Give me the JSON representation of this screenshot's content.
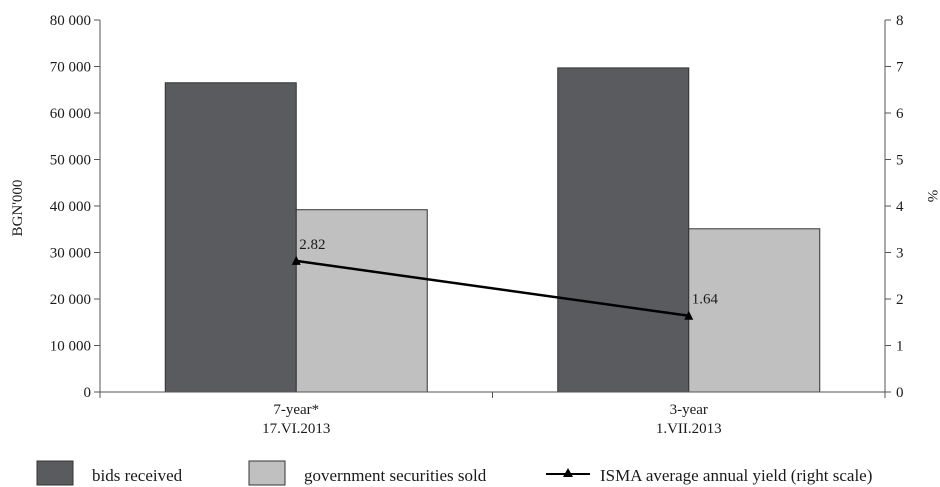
{
  "chart_data": {
    "type": "bar",
    "categories": [
      [
        "7-year*",
        "17.VI.2013"
      ],
      [
        "3-year",
        "1.VII.2013"
      ]
    ],
    "series": [
      {
        "name": "bids received",
        "values": [
          66500,
          69700
        ],
        "color": "#595b5e",
        "axis": "left"
      },
      {
        "name": "government securities sold",
        "values": [
          39200,
          35100
        ],
        "color": "#c0c0c0",
        "axis": "left"
      }
    ],
    "line_series": {
      "name": "ISMA average annual yield (right scale)",
      "values": [
        2.82,
        1.64
      ],
      "labels": [
        "2.82",
        "1.64"
      ],
      "color": "#000000",
      "marker": "triangle",
      "axis": "right"
    },
    "ylabel": "BGN'000",
    "y2label": "%",
    "ylim": [
      0,
      80000
    ],
    "y2lim": [
      0,
      8
    ],
    "yticks": [
      "0",
      "10 000",
      "20 000",
      "30 000",
      "40 000",
      "50 000",
      "60 000",
      "70 000",
      "80 000"
    ],
    "y2ticks": [
      "0",
      "1",
      "2",
      "3",
      "4",
      "5",
      "6",
      "7",
      "8"
    ],
    "grid": false,
    "legend_position": "bottom"
  }
}
